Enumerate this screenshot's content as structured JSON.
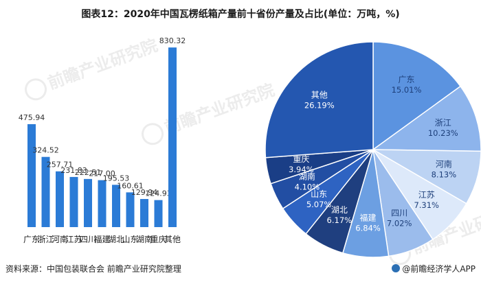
{
  "title": "图表12：2020年中国瓦楞纸箱产量前十省份产量及占比(单位：万吨，%)",
  "watermark": "前瞻产业研究院",
  "footer": {
    "source": "资料来源：中国包装联合会 前瞻产业研究院整理",
    "app": "@前瞻经济学人APP"
  },
  "chart_data": [
    {
      "type": "bar",
      "title": "",
      "xlabel": "",
      "ylabel": "",
      "ylim": [
        0,
        850
      ],
      "grid": false,
      "categories": [
        "广东",
        "浙江",
        "河南",
        "江苏",
        "四川",
        "福建",
        "湖北",
        "山东",
        "湖南",
        "重庆",
        "其他"
      ],
      "values": [
        475.94,
        324.52,
        257.71,
        231.83,
        222.51,
        217.0,
        195.53,
        160.61,
        129.94,
        124.93,
        830.32
      ],
      "labels": [
        "475.94",
        "324.52",
        "257.71",
        "231.83",
        "222.51",
        "217.00",
        "195.53",
        "160.61",
        "129.94",
        "124.93",
        "830.32"
      ],
      "color": "#2b7bd6"
    },
    {
      "type": "pie",
      "title": "",
      "legend": "none",
      "slices": [
        {
          "name": "广东",
          "value": 15.01,
          "label": "15.01%",
          "color": "#5b93e0",
          "text_color": "#1d3f7a"
        },
        {
          "name": "浙江",
          "value": 10.23,
          "label": "10.23%",
          "color": "#8db4ec",
          "text_color": "#1d3f7a"
        },
        {
          "name": "河南",
          "value": 8.13,
          "label": "8.13%",
          "color": "#bcd3f3",
          "text_color": "#1d3f7a"
        },
        {
          "name": "江苏",
          "value": 7.31,
          "label": "7.31%",
          "color": "#dde9fa",
          "text_color": "#1d3f7a"
        },
        {
          "name": "四川",
          "value": 7.02,
          "label": "7.02%",
          "color": "#9bbcec",
          "text_color": "#1d3f7a"
        },
        {
          "name": "福建",
          "value": 6.84,
          "label": "6.84%",
          "color": "#6c9fe2",
          "text_color": "#ffffff"
        },
        {
          "name": "湖北",
          "value": 6.17,
          "label": "6.17%",
          "color": "#1f3f7f",
          "text_color": "#ffffff"
        },
        {
          "name": "山东",
          "value": 5.07,
          "label": "5.07%",
          "color": "#2e63c2",
          "text_color": "#ffffff"
        },
        {
          "name": "湖南",
          "value": 4.1,
          "label": "4.10%",
          "color": "#224ea3",
          "text_color": "#ffffff"
        },
        {
          "name": "重庆",
          "value": 3.94,
          "label": "3.94%",
          "color": "#1a3e86",
          "text_color": "#ffffff"
        },
        {
          "name": "其他",
          "value": 26.19,
          "label": "26.19%",
          "color": "#2457b0",
          "text_color": "#ffffff"
        }
      ]
    }
  ]
}
